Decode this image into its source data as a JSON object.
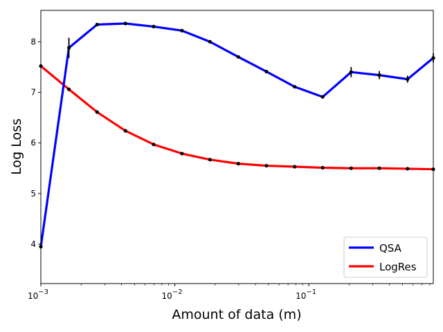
{
  "chart_data": {
    "type": "line",
    "xlabel": "Amount of data (m)",
    "ylabel": "Log Loss",
    "xscale": "log",
    "xlim": [
      0.001,
      0.85
    ],
    "ylim": [
      3.22,
      8.62
    ],
    "x_ticks": [
      {
        "value": 0.001,
        "label": "10",
        "exp": "−3"
      },
      {
        "value": 0.01,
        "label": "10",
        "exp": "−2"
      },
      {
        "value": 0.1,
        "label": "10",
        "exp": "−1"
      }
    ],
    "y_ticks": [
      {
        "value": 4,
        "label": "4"
      },
      {
        "value": 5,
        "label": "5"
      },
      {
        "value": 6,
        "label": "6"
      },
      {
        "value": 7,
        "label": "7"
      },
      {
        "value": 8,
        "label": "8"
      }
    ],
    "x": [
      0.001,
      0.00162,
      0.00263,
      0.00428,
      0.00695,
      0.0113,
      0.0183,
      0.0298,
      0.0483,
      0.0785,
      0.127,
      0.207,
      0.336,
      0.546,
      0.85
    ],
    "series": [
      {
        "name": "QSA",
        "color": "#0000ff",
        "values": [
          3.95,
          7.88,
          8.34,
          8.36,
          8.3,
          8.22,
          8.0,
          7.7,
          7.41,
          7.11,
          6.91,
          7.4,
          7.34,
          7.26,
          7.68
        ],
        "errors": [
          0,
          0.2,
          0,
          0,
          0,
          0,
          0,
          0,
          0,
          0,
          0,
          0.1,
          0.08,
          0.07,
          0.09
        ]
      },
      {
        "name": "LogRes",
        "color": "#ff0000",
        "values": [
          7.52,
          7.06,
          6.61,
          6.24,
          5.97,
          5.79,
          5.67,
          5.59,
          5.55,
          5.53,
          5.51,
          5.5,
          5.5,
          5.49,
          5.48
        ],
        "errors": [
          0,
          0,
          0,
          0,
          0,
          0,
          0,
          0,
          0,
          0,
          0,
          0,
          0,
          0,
          0
        ]
      }
    ],
    "legend_position": "lower-right",
    "grid": false
  }
}
